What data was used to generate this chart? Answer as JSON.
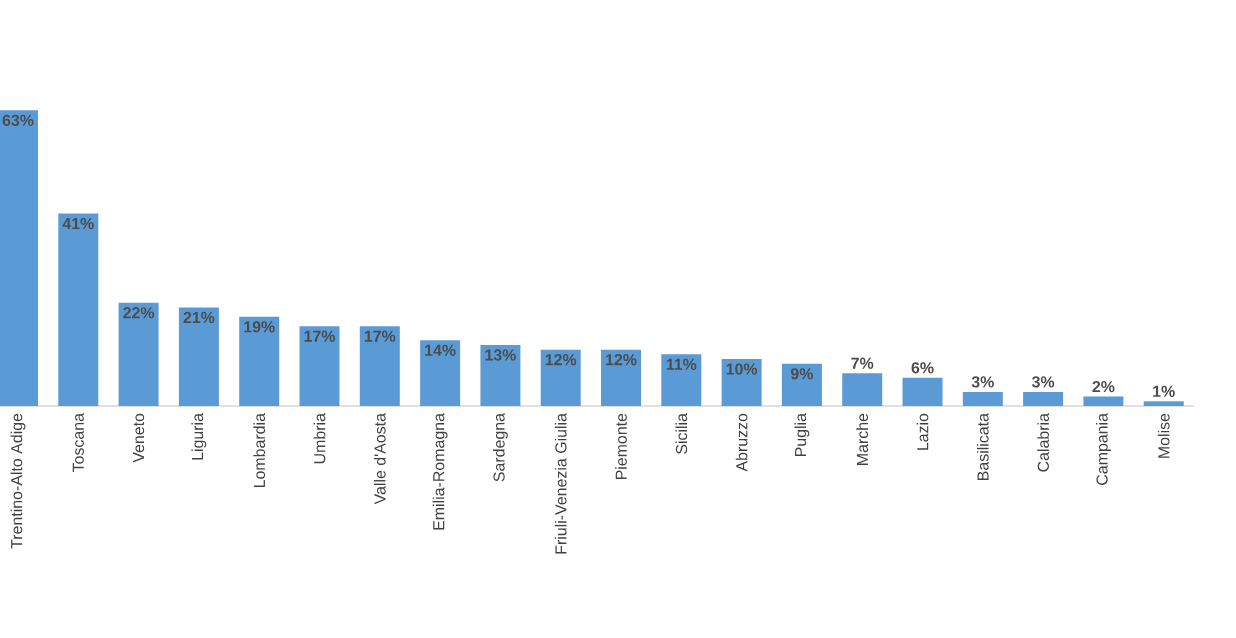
{
  "chart_data": {
    "type": "bar",
    "categories": [
      "Trentino-Alto Adige",
      "Toscana",
      "Veneto",
      "Liguria",
      "Lombardia",
      "Umbria",
      "Valle d'Aosta",
      "Emilia-Romagna",
      "Sardegna",
      "Friuli-Venezia Giulia",
      "Piemonte",
      "Sicilia",
      "Abruzzo",
      "Puglia",
      "Marche",
      "Lazio",
      "Basilicata",
      "Calabria",
      "Campania",
      "Molise"
    ],
    "values": [
      63,
      41,
      22,
      21,
      19,
      17,
      17,
      14,
      13,
      12,
      12,
      11,
      10,
      9,
      7,
      6,
      3,
      3,
      2,
      1
    ],
    "value_labels": [
      "63%",
      "41%",
      "22%",
      "21%",
      "19%",
      "17%",
      "17%",
      "14%",
      "13%",
      "12%",
      "12%",
      "11%",
      "10%",
      "9%",
      "7%",
      "6%",
      "3%",
      "3%",
      "2%",
      "1%"
    ],
    "color": "#5b9bd5"
  }
}
